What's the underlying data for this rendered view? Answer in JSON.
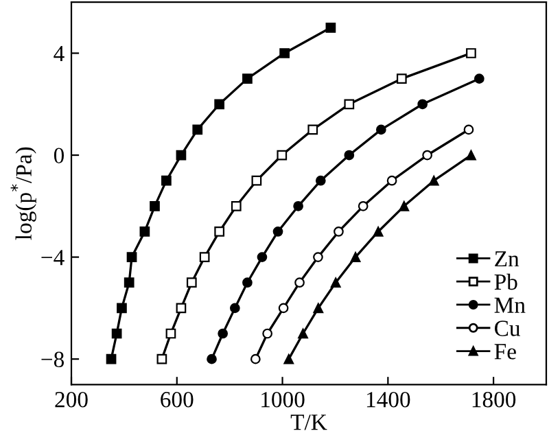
{
  "chart_data": {
    "type": "line",
    "xlabel": "T/K",
    "ylabel": "log(p$^{*}$/Pa)",
    "xlim": [
      200,
      2000
    ],
    "xticks": [
      200,
      600,
      1000,
      1400,
      1800
    ],
    "ylim": [
      -9,
      6
    ],
    "yticks": [
      -8,
      -4,
      0,
      4
    ],
    "grid": false,
    "legend": "bottom right",
    "line_style": "solid",
    "series": [
      {
        "name": "Zn",
        "color": "#000000",
        "marker": "square",
        "x": [
          351,
          372,
          391,
          419,
          429,
          478,
          516,
          560,
          616,
          678,
          761,
          867,
          1008,
          1183
        ],
        "values": [
          -8,
          -7,
          -6,
          -5,
          -4,
          -3,
          -2,
          -1,
          0,
          1,
          2,
          3,
          4,
          5
        ]
      },
      {
        "name": "Pb",
        "color": "#000000",
        "marker": "square",
        "x": [
          543,
          577,
          616,
          656,
          705,
          761,
          825,
          902,
          998,
          1115,
          1253,
          1452,
          1715
        ],
        "values": [
          -8,
          -7,
          -6,
          -5,
          -4,
          -3,
          -2,
          -1,
          0,
          1,
          2,
          3,
          4
        ]
      },
      {
        "name": "Mn",
        "color": "#000000",
        "marker": "circle",
        "x": [
          732,
          774,
          820,
          867,
          923,
          983,
          1060,
          1145,
          1253,
          1374,
          1531,
          1746
        ],
        "values": [
          -8,
          -7,
          -6,
          -5,
          -4,
          -3,
          -2,
          -1,
          0,
          1,
          2,
          3
        ]
      },
      {
        "name": "Cu",
        "color": "#000000",
        "marker": "circle",
        "x": [
          898,
          943,
          1004,
          1065,
          1135,
          1213,
          1306,
          1415,
          1549,
          1706
        ],
        "values": [
          -8,
          -7,
          -6,
          -5,
          -4,
          -3,
          -2,
          -1,
          0,
          1
        ]
      },
      {
        "name": "Fe",
        "color": "#000000",
        "marker": "triangle",
        "x": [
          1024,
          1078,
          1136,
          1202,
          1277,
          1363,
          1461,
          1574,
          1715
        ],
        "values": [
          -8,
          -7,
          -6,
          -5,
          -4,
          -3,
          -2,
          -1,
          0
        ]
      }
    ]
  }
}
